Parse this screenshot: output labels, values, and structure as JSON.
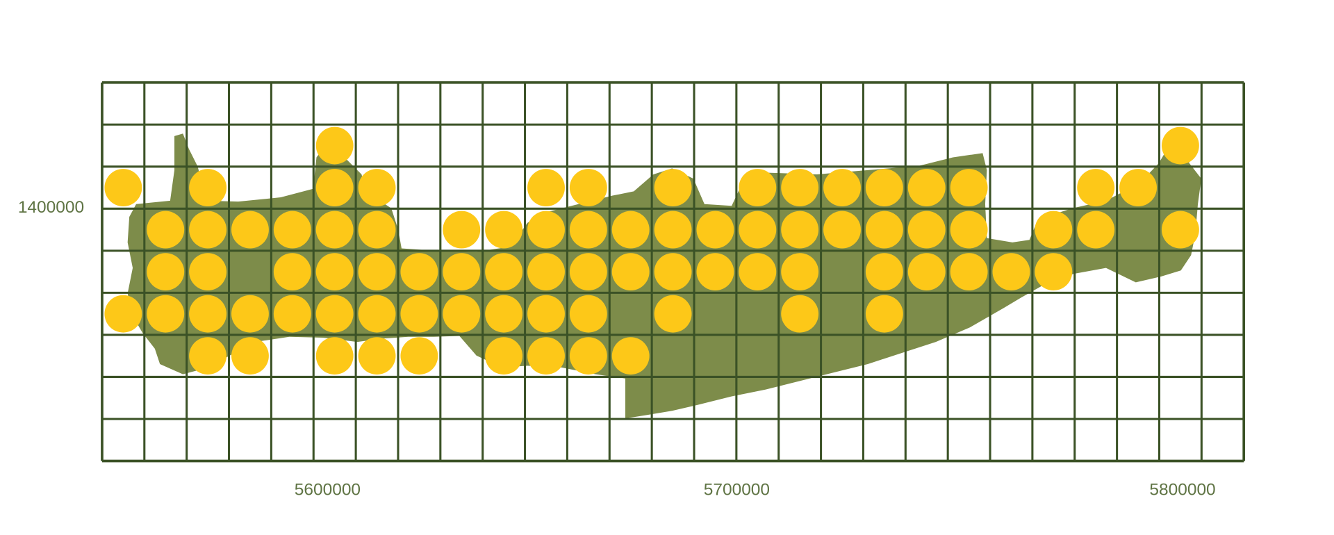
{
  "colors": {
    "land": "#7d8c4a",
    "grid": "#3b5226",
    "dot": "#fdc818",
    "label": "#5f7444",
    "background": "#ffffff"
  },
  "axes": {
    "x_labels": [
      "5600000",
      "5700000",
      "5800000"
    ],
    "y_labels": [
      "1400000"
    ]
  },
  "grid": {
    "columns": 27,
    "rows": 9
  },
  "occupied_cells": [
    {
      "row": 1,
      "cols": [
        5,
        25
      ]
    },
    {
      "row": 2,
      "cols": [
        0,
        2,
        5,
        6,
        10,
        11,
        13,
        15,
        16,
        17,
        18,
        19,
        20,
        23,
        24
      ]
    },
    {
      "row": 3,
      "cols": [
        1,
        2,
        3,
        4,
        5,
        6,
        8,
        9,
        10,
        11,
        12,
        13,
        14,
        15,
        16,
        17,
        18,
        19,
        20,
        22,
        23,
        25
      ]
    },
    {
      "row": 4,
      "cols": [
        1,
        2,
        4,
        5,
        6,
        7,
        8,
        9,
        10,
        11,
        12,
        13,
        14,
        15,
        16,
        18,
        19,
        20,
        21,
        22
      ]
    },
    {
      "row": 5,
      "cols": [
        0,
        1,
        2,
        3,
        4,
        5,
        6,
        7,
        8,
        9,
        10,
        11,
        13,
        16,
        18
      ]
    },
    {
      "row": 6,
      "cols": [
        2,
        3,
        5,
        6,
        7,
        9,
        10,
        11,
        12
      ]
    }
  ]
}
